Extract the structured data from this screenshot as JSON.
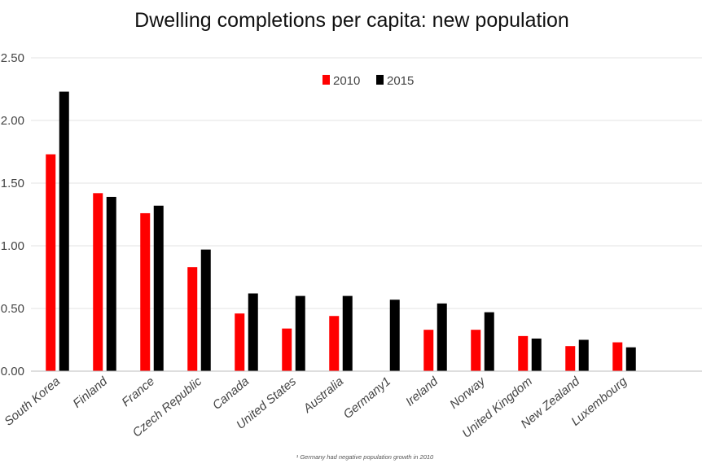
{
  "chart_data": {
    "type": "bar",
    "title": "Dwelling completions per capita: new population",
    "xlabel": "",
    "ylabel": "",
    "ylim": [
      0,
      2.5
    ],
    "yticks": [
      "0.00",
      "0.50",
      "1.00",
      "1.50",
      "2.00",
      "2.50"
    ],
    "grid": true,
    "legend_position": "top-center",
    "categories": [
      "South Korea",
      "Finland",
      "France",
      "Czech Republic",
      "Canada",
      "United States",
      "Australia",
      "Germany1",
      "Ireland",
      "Norway",
      "United Kingdom",
      "New Zealand",
      "Luxembourg"
    ],
    "series": [
      {
        "name": "2010",
        "color": "#ff0000",
        "values": [
          1.73,
          1.42,
          1.26,
          0.83,
          0.46,
          0.34,
          0.44,
          null,
          0.33,
          0.33,
          0.28,
          0.2,
          0.23
        ]
      },
      {
        "name": "2015",
        "color": "#000000",
        "values": [
          2.23,
          1.39,
          1.32,
          0.97,
          0.62,
          0.6,
          0.6,
          0.57,
          0.54,
          0.47,
          0.26,
          0.25,
          0.19
        ]
      }
    ],
    "footnote": "¹ Germany had negative population growth in 2010"
  }
}
